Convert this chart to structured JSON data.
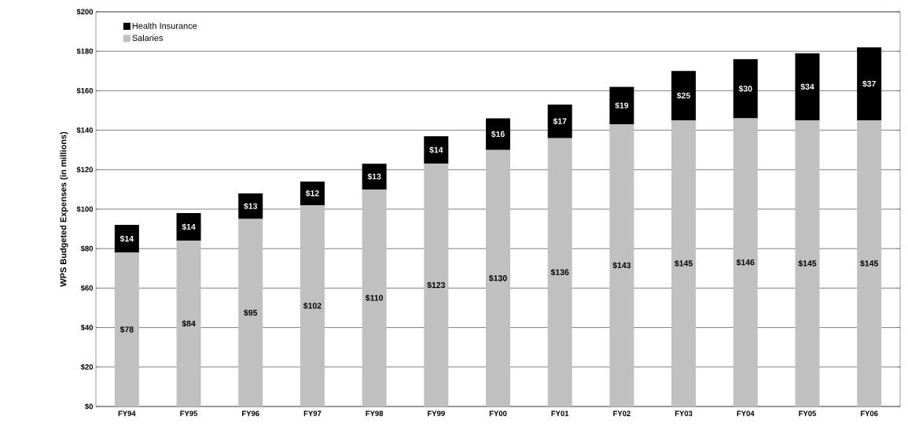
{
  "chart_data": {
    "type": "bar",
    "stacked": true,
    "ylabel": "WPS Budgeted Expenses (in millions)",
    "categories": [
      "FY94",
      "FY95",
      "FY96",
      "FY97",
      "FY98",
      "FY99",
      "FY00",
      "FY01",
      "FY02",
      "FY03",
      "FY04",
      "FY05",
      "FY06"
    ],
    "series": [
      {
        "name": "Salaries",
        "color": "#c0c0c0",
        "values": [
          78,
          84,
          95,
          102,
          110,
          123,
          130,
          136,
          143,
          145,
          146,
          145,
          145
        ],
        "value_labels": [
          "$78",
          "$84",
          "$95",
          "$102",
          "$110",
          "$123",
          "$130",
          "$136",
          "$143",
          "$145",
          "$146",
          "$145",
          "$145"
        ]
      },
      {
        "name": "Health Insurance",
        "color": "#000000",
        "values": [
          14,
          14,
          13,
          12,
          13,
          14,
          16,
          17,
          19,
          25,
          30,
          34,
          37
        ],
        "value_labels": [
          "$14",
          "$14",
          "$13",
          "$12",
          "$13",
          "$14",
          "$16",
          "$17",
          "$19",
          "$25",
          "$30",
          "$34",
          "$37"
        ]
      }
    ],
    "ylim": [
      0,
      200
    ],
    "yticks": [
      {
        "value": 0,
        "label": "$0"
      },
      {
        "value": 20,
        "label": "$20"
      },
      {
        "value": 40,
        "label": "$40"
      },
      {
        "value": 60,
        "label": "$60"
      },
      {
        "value": 80,
        "label": "$80"
      },
      {
        "value": 100,
        "label": "$100"
      },
      {
        "value": 120,
        "label": "$120"
      },
      {
        "value": 140,
        "label": "$140"
      },
      {
        "value": 160,
        "label": "$160"
      },
      {
        "value": 180,
        "label": "$180"
      },
      {
        "value": 200,
        "label": "$200"
      }
    ],
    "grid": "y",
    "legend": "top left"
  }
}
